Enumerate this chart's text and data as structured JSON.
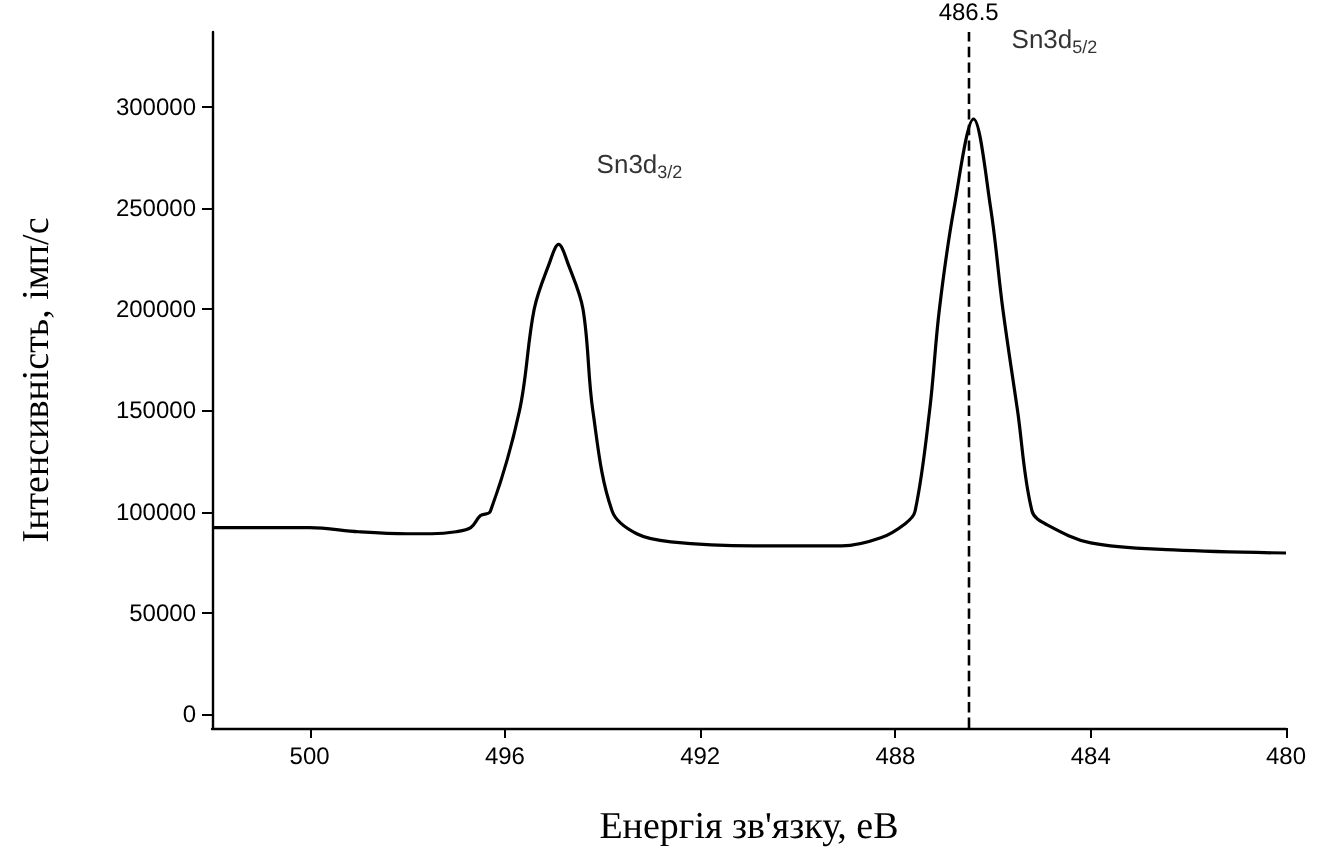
{
  "chart_data": {
    "type": "line",
    "xlabel": "Енергія зв'язку, еВ",
    "ylabel": "Інтенсивність, імп/с",
    "x": [
      502,
      500,
      499,
      498,
      497.5,
      497,
      496.7,
      496.5,
      496.3,
      495.7,
      495.4,
      495.1,
      494.9,
      494.7,
      494.4,
      494.2,
      493.8,
      493.3,
      492.6,
      490.9,
      489.1,
      488.3,
      487.8,
      487.6,
      487.3,
      487.1,
      486.8,
      486.4,
      486.05,
      485.8,
      485.5,
      485.2,
      484.9,
      484,
      482.3,
      480
    ],
    "series": [
      {
        "color": "#000000",
        "values": [
          92000,
          92000,
          90000,
          89000,
          89000,
          90000,
          92000,
          98000,
          100000,
          150000,
          200000,
          222000,
          232000,
          222000,
          200000,
          150000,
          100000,
          89000,
          85000,
          83000,
          83000,
          87000,
          94000,
          100000,
          150000,
          200000,
          250000,
          294000,
          250000,
          200000,
          150000,
          100000,
          93500,
          84500,
          81000,
          79500
        ]
      }
    ],
    "xlim": [
      502,
      480
    ],
    "xticks": [
      500,
      496,
      492,
      488,
      484,
      480
    ],
    "ylim": [
      -7000,
      337000
    ],
    "yticks": [
      0,
      50000,
      100000,
      150000,
      200000,
      250000,
      300000
    ],
    "marker": "none",
    "line_style": "solid",
    "grid": false,
    "ref_lines": [
      {
        "axis": "x",
        "value": 486.5,
        "label": "486.5",
        "line_style": "dashed",
        "color": "#000000"
      }
    ],
    "annotations": [
      "Sn3d$_{3/2}$",
      "Sn3d$_{5/2}$"
    ]
  }
}
